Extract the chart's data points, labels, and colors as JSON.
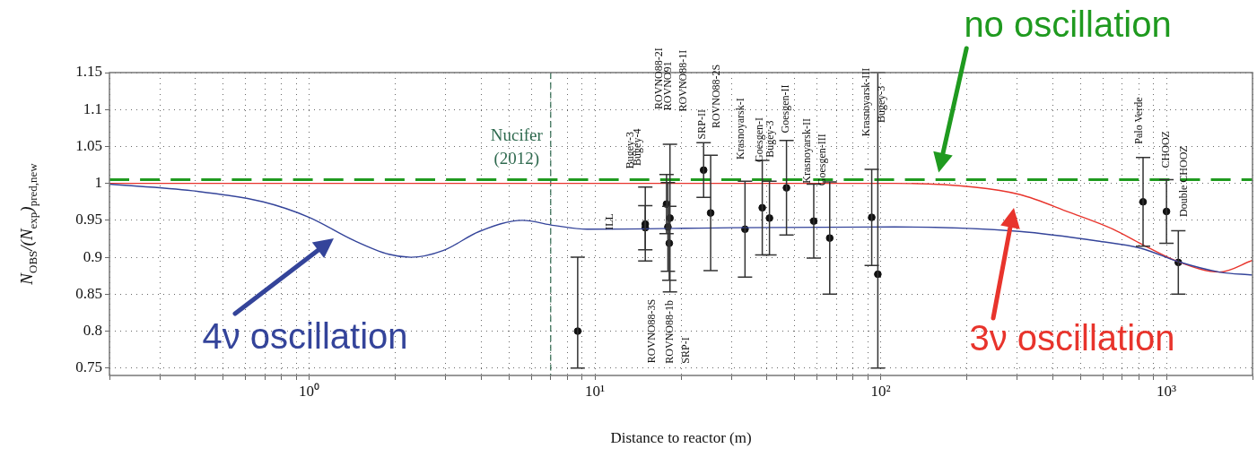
{
  "chart_data": {
    "type": "line",
    "xlabel": "Distance to reactor (m)",
    "ylabel": "N$_{OBS}$/(N$_{exp}$)$_{pred,new}$",
    "log": "x",
    "grid": true,
    "legend": "bottom",
    "xlim": [
      0.2,
      2000
    ],
    "ylim": [
      0.74,
      1.15
    ],
    "xticks": [
      {
        "value": 0.2,
        "label": null
      },
      {
        "value": 0.3,
        "label": null
      },
      {
        "value": 0.4,
        "label": null
      },
      {
        "value": 0.5,
        "label": null
      },
      {
        "value": 0.6,
        "label": null
      },
      {
        "value": 0.7,
        "label": null
      },
      {
        "value": 0.8,
        "label": null
      },
      {
        "value": 0.9,
        "label": null
      },
      {
        "value": 1,
        "label": "10⁰"
      },
      {
        "value": 2,
        "label": null
      },
      {
        "value": 3,
        "label": null
      },
      {
        "value": 4,
        "label": null
      },
      {
        "value": 5,
        "label": null
      },
      {
        "value": 6,
        "label": null
      },
      {
        "value": 7,
        "label": null
      },
      {
        "value": 8,
        "label": null
      },
      {
        "value": 9,
        "label": null
      },
      {
        "value": 10,
        "label": "10¹"
      },
      {
        "value": 20,
        "label": null
      },
      {
        "value": 30,
        "label": null
      },
      {
        "value": 40,
        "label": null
      },
      {
        "value": 50,
        "label": null
      },
      {
        "value": 60,
        "label": null
      },
      {
        "value": 70,
        "label": null
      },
      {
        "value": 80,
        "label": null
      },
      {
        "value": 90,
        "label": null
      },
      {
        "value": 100,
        "label": "10²"
      },
      {
        "value": 200,
        "label": null
      },
      {
        "value": 300,
        "label": null
      },
      {
        "value": 400,
        "label": null
      },
      {
        "value": 500,
        "label": null
      },
      {
        "value": 600,
        "label": null
      },
      {
        "value": 700,
        "label": null
      },
      {
        "value": 800,
        "label": null
      },
      {
        "value": 900,
        "label": null
      },
      {
        "value": 1000,
        "label": "10³"
      },
      {
        "value": 2000,
        "label": null
      }
    ],
    "yticks": [
      0.75,
      0.8,
      0.85,
      0.9,
      0.95,
      1,
      1.05,
      1.1,
      1.15
    ],
    "series": [
      {
        "name": "4ν oscillation",
        "color": "#34449a",
        "marker": "none",
        "x": [
          0.2,
          0.39,
          0.69,
          1.0,
          1.43,
          1.9,
          2.27,
          2.94,
          3.94,
          5.57,
          7.2,
          9.4,
          30,
          112,
          306,
          575,
          817,
          1100,
          1530,
          2000
        ],
        "values": [
          0.999,
          0.99,
          0.975,
          0.954,
          0.923,
          0.904,
          0.9,
          0.909,
          0.935,
          0.95,
          0.943,
          0.938,
          0.94,
          0.941,
          0.935,
          0.922,
          0.912,
          0.894,
          0.88,
          0.876
        ]
      },
      {
        "name": "3ν oscillation",
        "color": "#e8342c",
        "marker": "none",
        "x": [
          0.2,
          10,
          50,
          112,
          211,
          306,
          457,
          651,
          817,
          1100,
          1530,
          2000
        ],
        "values": [
          1.0,
          1.0,
          1.0,
          1.0,
          0.995,
          0.985,
          0.961,
          0.938,
          0.918,
          0.894,
          0.88,
          0.896
        ]
      },
      {
        "type": "scatter",
        "color": "#111111",
        "marker": "circle",
        "x": [
          8.7,
          15,
          15,
          17.8,
          18.3,
          18,
          18.2,
          24,
          25.4,
          33.5,
          38.5,
          40.8,
          46.8,
          58.3,
          66.3,
          93,
          97.7,
          828,
          1000,
          1100
        ],
        "values": [
          0.8,
          0.945,
          0.94,
          0.972,
          0.953,
          0.941,
          0.919,
          1.018,
          0.96,
          0.938,
          0.967,
          0.953,
          0.994,
          0.949,
          0.926,
          0.954,
          0.877,
          0.975,
          0.962,
          0.893
        ],
        "errors": [
          [
            0.75,
            0.9
          ],
          0.05,
          0.03,
          0.04,
          0.1,
          0.06,
          0.05,
          0.037,
          0.078,
          0.065,
          0.064,
          0.05,
          0.064,
          0.05,
          0.076,
          0.065,
          [
            0.75,
            1.15
          ],
          0.06,
          0.043,
          0.043
        ]
      }
    ],
    "ref_lines": [
      {
        "axis": "y",
        "value": 1.005,
        "label": "no oscillation",
        "color": "#1f9a1f",
        "line_style": "dashed"
      },
      {
        "axis": "x",
        "value": 7,
        "label": "Nucifer (2012)",
        "color": "#2f6a4f",
        "line_style": "dashed"
      }
    ],
    "annotations": [
      "ILL",
      "Bugey-3",
      "Bugey-4",
      "ROVNO88-2I",
      "ROVNO91",
      "ROVNO88-1I",
      "SRP-II",
      "ROVNO88-2S",
      "Krasnoyarsk-I",
      "Goesgen-I",
      "Bugey-3",
      "Goesgen-II",
      "Krasnoyarsk-II",
      "Goesgen-III",
      "Krasnoyarsk-III",
      "Bugey-3",
      "ROVNO88-3S",
      "ROVNO88-1b",
      "SRP-I",
      "Palo Verde",
      "CHOOZ",
      "Double CHOOZ"
    ]
  }
}
